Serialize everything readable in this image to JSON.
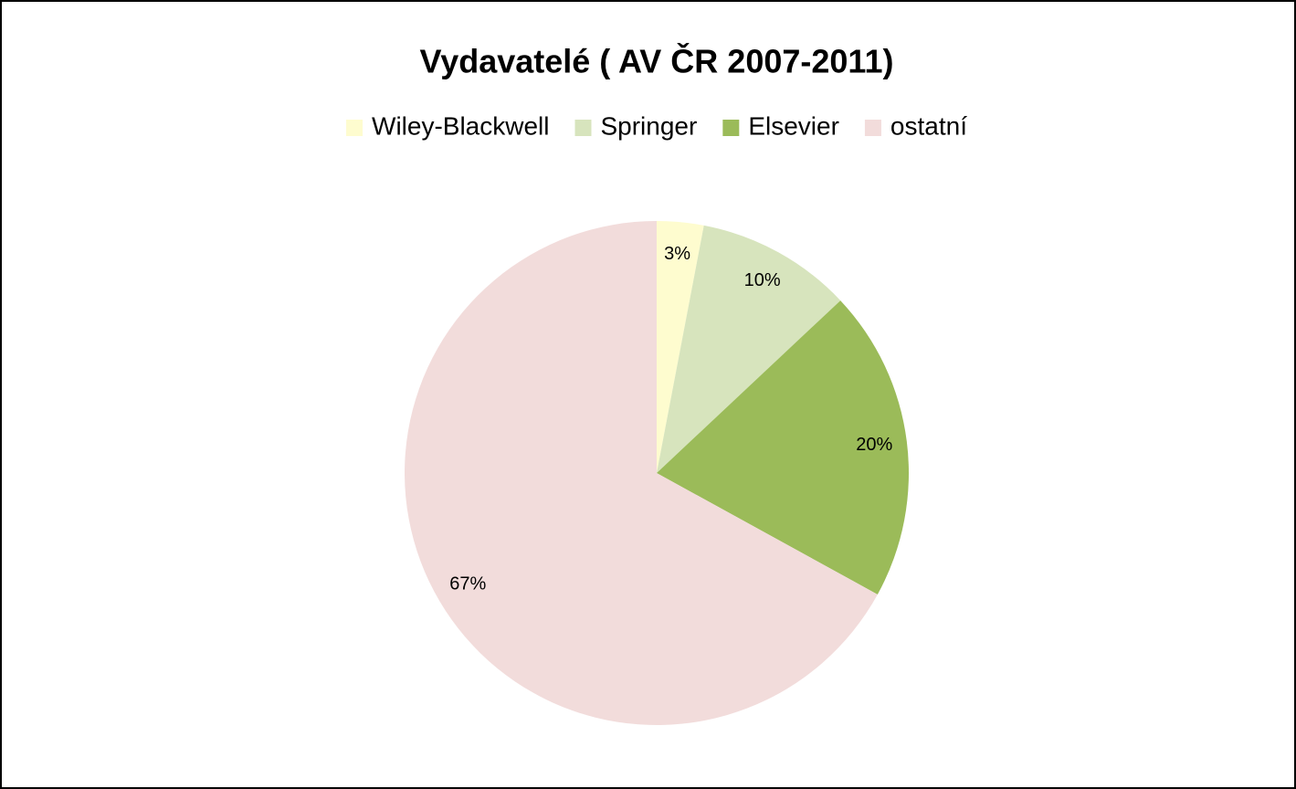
{
  "chart_data": {
    "type": "pie",
    "title": "Vydavatelé ( AV ČR 2007-2011)",
    "categories": [
      "Wiley-Blackwell",
      "Springer",
      "Elsevier",
      "ostatní"
    ],
    "values": [
      3,
      10,
      20,
      67
    ],
    "value_labels": [
      "3%",
      "10%",
      "20%",
      "67%"
    ],
    "colors": [
      "#fefccf",
      "#d7e4bd",
      "#9bbb59",
      "#f2dcdb"
    ],
    "legend": "top"
  }
}
